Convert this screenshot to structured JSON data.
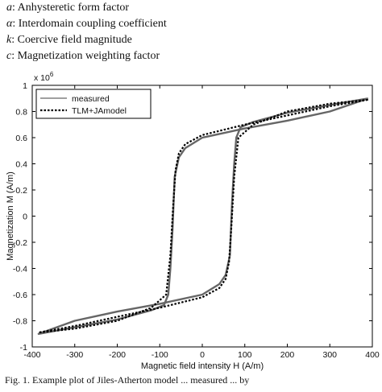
{
  "definitions": [
    {
      "symbol": "a",
      "text": ": Anhysteretic form factor"
    },
    {
      "symbol": "α",
      "text": ": Interdomain coupling coefficient"
    },
    {
      "symbol": "k",
      "text": ": Coercive field magnitude"
    },
    {
      "symbol": "c",
      "text": ": Magnetization weighting factor"
    }
  ],
  "caption": "Fig. 1. Example plot of Jiles-Atherton model ... measured ... by",
  "chart_data": {
    "type": "line",
    "xlabel": "Magnetic field intensity H (A/m)",
    "ylabel": "Magnetization M (A/m)",
    "y_multiplier": "x 10^6",
    "xlim": [
      -400,
      400
    ],
    "ylim": [
      -1,
      1
    ],
    "xticks": [
      -400,
      -300,
      -200,
      -100,
      0,
      100,
      200,
      300,
      400
    ],
    "yticks": [
      -1,
      -0.8,
      -0.6,
      -0.4,
      -0.2,
      0,
      0.2,
      0.4,
      0.6,
      0.8,
      1
    ],
    "legend_position": "top-left",
    "series": [
      {
        "name": "measured",
        "style": "solid",
        "color": "#666666",
        "x": [
          390,
          300,
          200,
          120,
          90,
          80,
          75,
          70,
          65,
          55,
          40,
          0,
          -100,
          -200,
          -300,
          -385,
          -300,
          -200,
          -120,
          -90,
          -80,
          -75,
          -70,
          -65,
          -55,
          -40,
          0,
          100,
          200,
          300,
          390
        ],
        "y": [
          0.9,
          0.85,
          0.79,
          0.72,
          0.68,
          0.6,
          0.4,
          0.1,
          -0.3,
          -0.45,
          -0.52,
          -0.6,
          -0.67,
          -0.73,
          -0.8,
          -0.9,
          -0.85,
          -0.79,
          -0.72,
          -0.68,
          -0.6,
          -0.4,
          -0.1,
          0.3,
          0.45,
          0.52,
          0.6,
          0.67,
          0.73,
          0.8,
          0.9
        ]
      },
      {
        "name": "TLM+JAmodel",
        "style": "dotted",
        "color": "#000000",
        "x": [
          390,
          300,
          200,
          120,
          85,
          75,
          68,
          63,
          55,
          40,
          0,
          -100,
          -200,
          -300,
          -385,
          -300,
          -200,
          -120,
          -85,
          -75,
          -68,
          -63,
          -55,
          -40,
          0,
          100,
          200,
          300,
          390
        ],
        "y": [
          0.89,
          0.86,
          0.8,
          0.7,
          0.6,
          0.3,
          -0.1,
          -0.35,
          -0.48,
          -0.55,
          -0.62,
          -0.7,
          -0.77,
          -0.84,
          -0.89,
          -0.86,
          -0.8,
          -0.7,
          -0.6,
          -0.3,
          0.1,
          0.35,
          0.48,
          0.55,
          0.62,
          0.7,
          0.77,
          0.84,
          0.89
        ]
      }
    ]
  }
}
